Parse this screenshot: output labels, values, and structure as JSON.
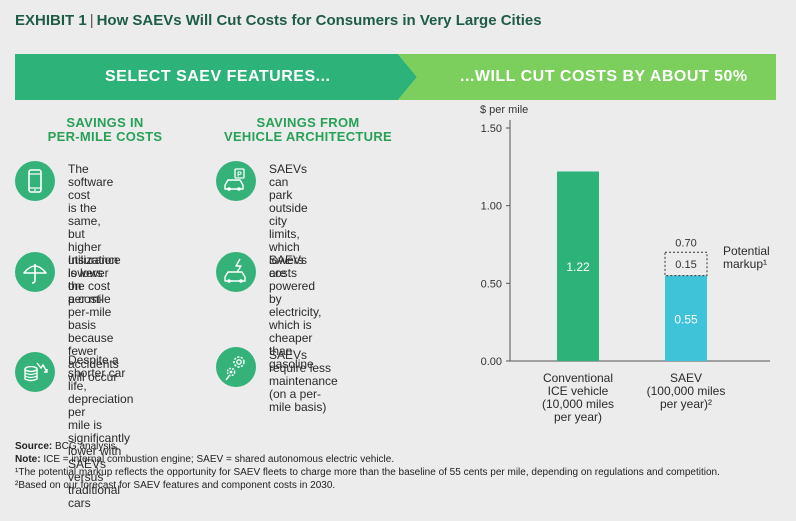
{
  "header": {
    "exhibit": "EXHIBIT 1",
    "separator": "|",
    "title": "How SAEVs Will Cut Costs for Consumers in Very Large Cities"
  },
  "banners": {
    "left": "SELECT SAEV FEATURES...",
    "right": "...WILL CUT COSTS BY ABOUT 50%",
    "left_color": "#2db37a",
    "right_color": "#7ccf5d"
  },
  "columns": [
    {
      "heading": "SAVINGS IN\nPER-MILE COSTS",
      "features": [
        {
          "icon": "smartphone-icon",
          "text": "The software cost\nis the same, but\nhigher utilization\nlowers the cost\nper mile"
        },
        {
          "icon": "umbrella-icon",
          "text": "Insurance is lower on\na cost-per-mile basis\nbecause fewer\naccidents will occur"
        },
        {
          "icon": "coins-down-icon",
          "text": "Despite a shorter car\nlife, depreciation per\nmile is significantly\nlower with SAEVs\nversus traditional cars"
        }
      ]
    },
    {
      "heading": "SAVINGS FROM\nVEHICLE ARCHITECTURE",
      "features": [
        {
          "icon": "parking-car-icon",
          "text": "SAEVs can park outside\ncity limits, which\nlowers costs"
        },
        {
          "icon": "electric-car-icon",
          "text": "SAEVs are powered by\nelectricity, which is\ncheaper than gasoline"
        },
        {
          "icon": "gears-icon",
          "text": "SAEVs require less\nmaintenance\n(on a per-mile basis)"
        }
      ]
    }
  ],
  "chart_data": {
    "type": "bar",
    "ylabel": "$ per mile",
    "ylim": [
      0,
      1.5
    ],
    "yticks": [
      0.0,
      0.5,
      1.0,
      1.5
    ],
    "ytick_labels": [
      "0.00",
      "0.50",
      "1.00",
      "1.50"
    ],
    "categories": [
      "Conventional\nICE vehicle\n(10,000 miles\nper year)",
      "SAEV\n(100,000 miles\nper year)²"
    ],
    "bars": [
      {
        "value": 1.22,
        "label": "1.22",
        "color": "#2db37a"
      },
      {
        "value": 0.55,
        "label": "0.55",
        "color": "#3ec3d8",
        "markup": 0.15,
        "markup_label": "0.15",
        "total": 0.7,
        "total_label": "0.70"
      }
    ],
    "annotation": "Potential\nmarkup¹"
  },
  "notes": {
    "source_label": "Source:",
    "source_text": "BCG analysis.",
    "note_label": "Note:",
    "note_text": "ICE = internal combustion engine; SAEV = shared autonomous electric vehicle.",
    "footnote1": "¹The potential markup reflects the opportunity for SAEV fleets to charge more than the baseline of 55 cents per mile, depending on regulations and competition.",
    "footnote2": "²Based on our forecast for SAEV features and component costs in 2030."
  }
}
